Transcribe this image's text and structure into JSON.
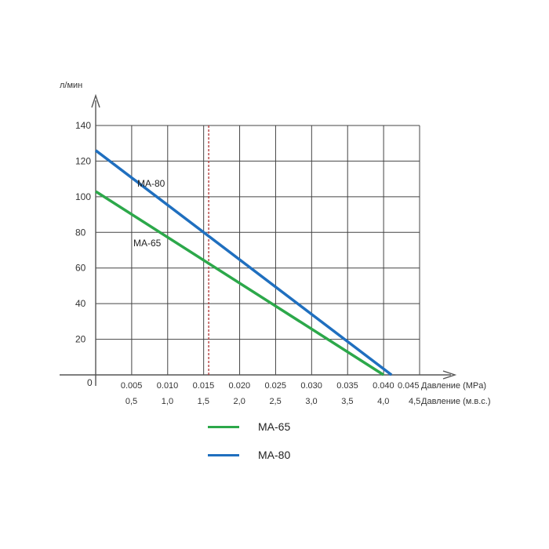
{
  "chart_data": {
    "type": "line",
    "ylabel": "л/мин",
    "xlabel": "Давление (MPa)",
    "x2label": "Давление (м.в.с.)",
    "origin_label": "0",
    "ylim": [
      0,
      140
    ],
    "xlim": [
      0,
      0.045
    ],
    "grid": true,
    "yticks": [
      "20",
      "40",
      "60",
      "80",
      "100",
      "120",
      "140"
    ],
    "ytick_values": [
      20,
      40,
      60,
      80,
      100,
      120,
      140
    ],
    "xticks": [
      "0.005",
      "0.010",
      "0.015",
      "0.020",
      "0.025",
      "0.030",
      "0.035",
      "0.040",
      "0.045"
    ],
    "xtick_values": [
      0.005,
      0.01,
      0.015,
      0.02,
      0.025,
      0.03,
      0.035,
      0.04,
      0.045
    ],
    "x2ticks": [
      "0,5",
      "1,0",
      "1,5",
      "2,0",
      "2,5",
      "3,0",
      "3,5",
      "4,0",
      "4,5"
    ],
    "reference_line_x": 0.0157,
    "series": [
      {
        "name": "MA-65",
        "color": "#2ca84a",
        "x": [
          0,
          0.04
        ],
        "y": [
          103,
          0
        ]
      },
      {
        "name": "MA-80",
        "color": "#1f6fbf",
        "x": [
          0,
          0.0411
        ],
        "y": [
          126,
          0
        ]
      }
    ],
    "reference_color": "#b03030"
  },
  "annotations": {
    "ma80": "MA-80",
    "ma65": "MA-65"
  },
  "legend": {
    "ma65": "MA-65",
    "ma80": "MA-80"
  }
}
